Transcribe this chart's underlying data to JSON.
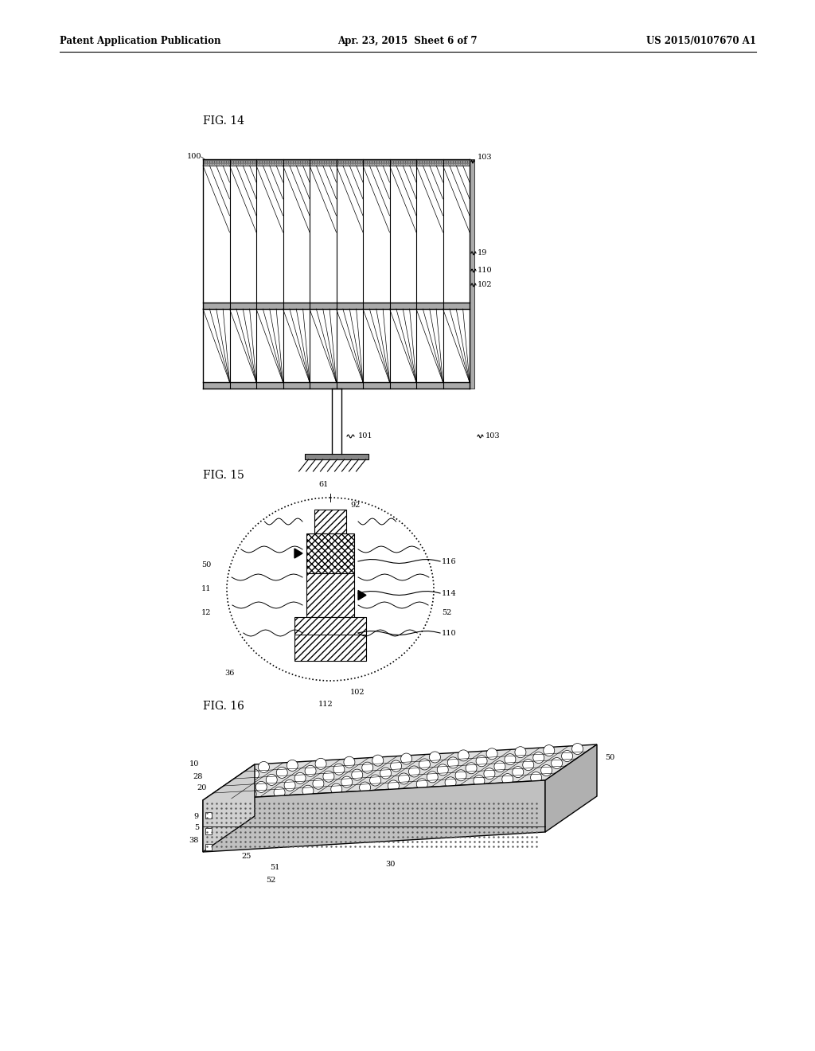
{
  "header_left": "Patent Application Publication",
  "header_mid": "Apr. 23, 2015  Sheet 6 of 7",
  "header_right": "US 2015/0107670 A1",
  "fig14_label": "FIG. 14",
  "fig15_label": "FIG. 15",
  "fig16_label": "FIG. 16",
  "bg_color": "#ffffff",
  "line_color": "#000000"
}
